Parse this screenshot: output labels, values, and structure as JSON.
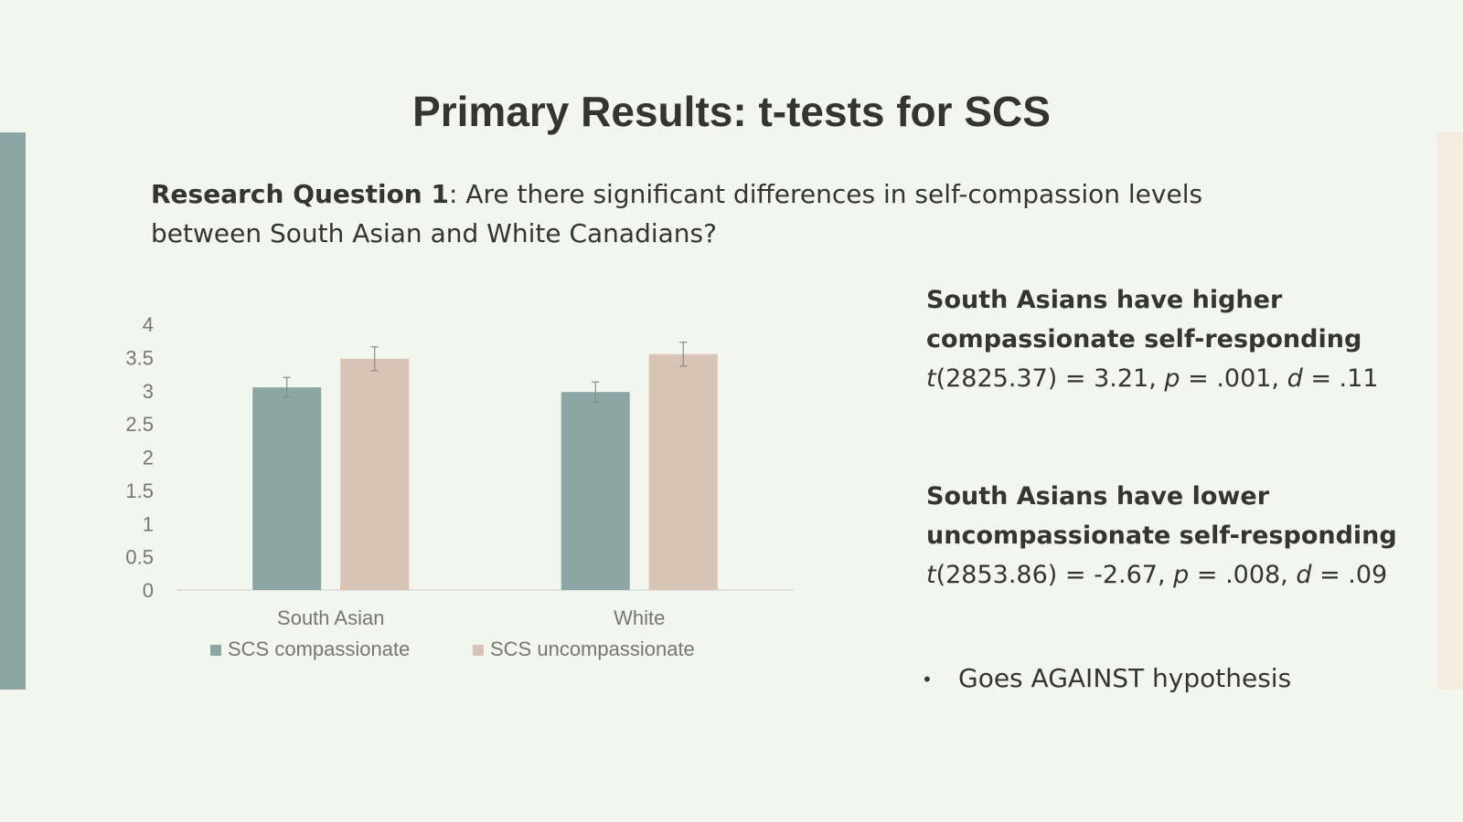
{
  "title": "Primary Results: t-tests for SCS",
  "question": {
    "label": "Research Question 1",
    "text": ": Are there significant differences in self-compassion levels between South Asian and White Canadians?"
  },
  "results": [
    {
      "heading": "South Asians have higher\ncompassionate self-responding",
      "stat": {
        "t": "t",
        "df_value": "(2825.37) = 3.21, ",
        "p": "p",
        "p_value": " = .001, ",
        "d": "d",
        "d_value": " = .11"
      }
    },
    {
      "heading": "South Asians have lower\nuncompassionate self-responding",
      "stat": {
        "t": "t",
        "df_value": "(2853.86) = -2.67, ",
        "p": "p",
        "p_value": " = .008, ",
        "d": "d",
        "d_value": " = .09"
      }
    }
  ],
  "bullet": {
    "symbol": "•",
    "text": "Goes AGAINST hypothesis"
  },
  "chart_data": {
    "type": "bar",
    "categories": [
      "South Asian",
      "White"
    ],
    "series": [
      {
        "name": "SCS compassionate",
        "values": [
          3.05,
          2.98
        ],
        "error": [
          0.15,
          0.15
        ],
        "color": "#8ca6a6"
      },
      {
        "name": "SCS uncompassionate",
        "values": [
          3.48,
          3.55
        ],
        "error": [
          0.18,
          0.18
        ],
        "color": "#d8c3b5"
      }
    ],
    "ylim": [
      0,
      4
    ],
    "yticks": [
      "0",
      "0.5",
      "1",
      "1.5",
      "2",
      "2.5",
      "3",
      "3.5",
      "4"
    ],
    "grid": false,
    "legend": "bottom"
  },
  "colors": {
    "left_bar": "#8ca6a6",
    "right_bar": "#f5ece0",
    "background": "#f3f5ef",
    "text": "#343530",
    "axis_text": "#767676"
  }
}
